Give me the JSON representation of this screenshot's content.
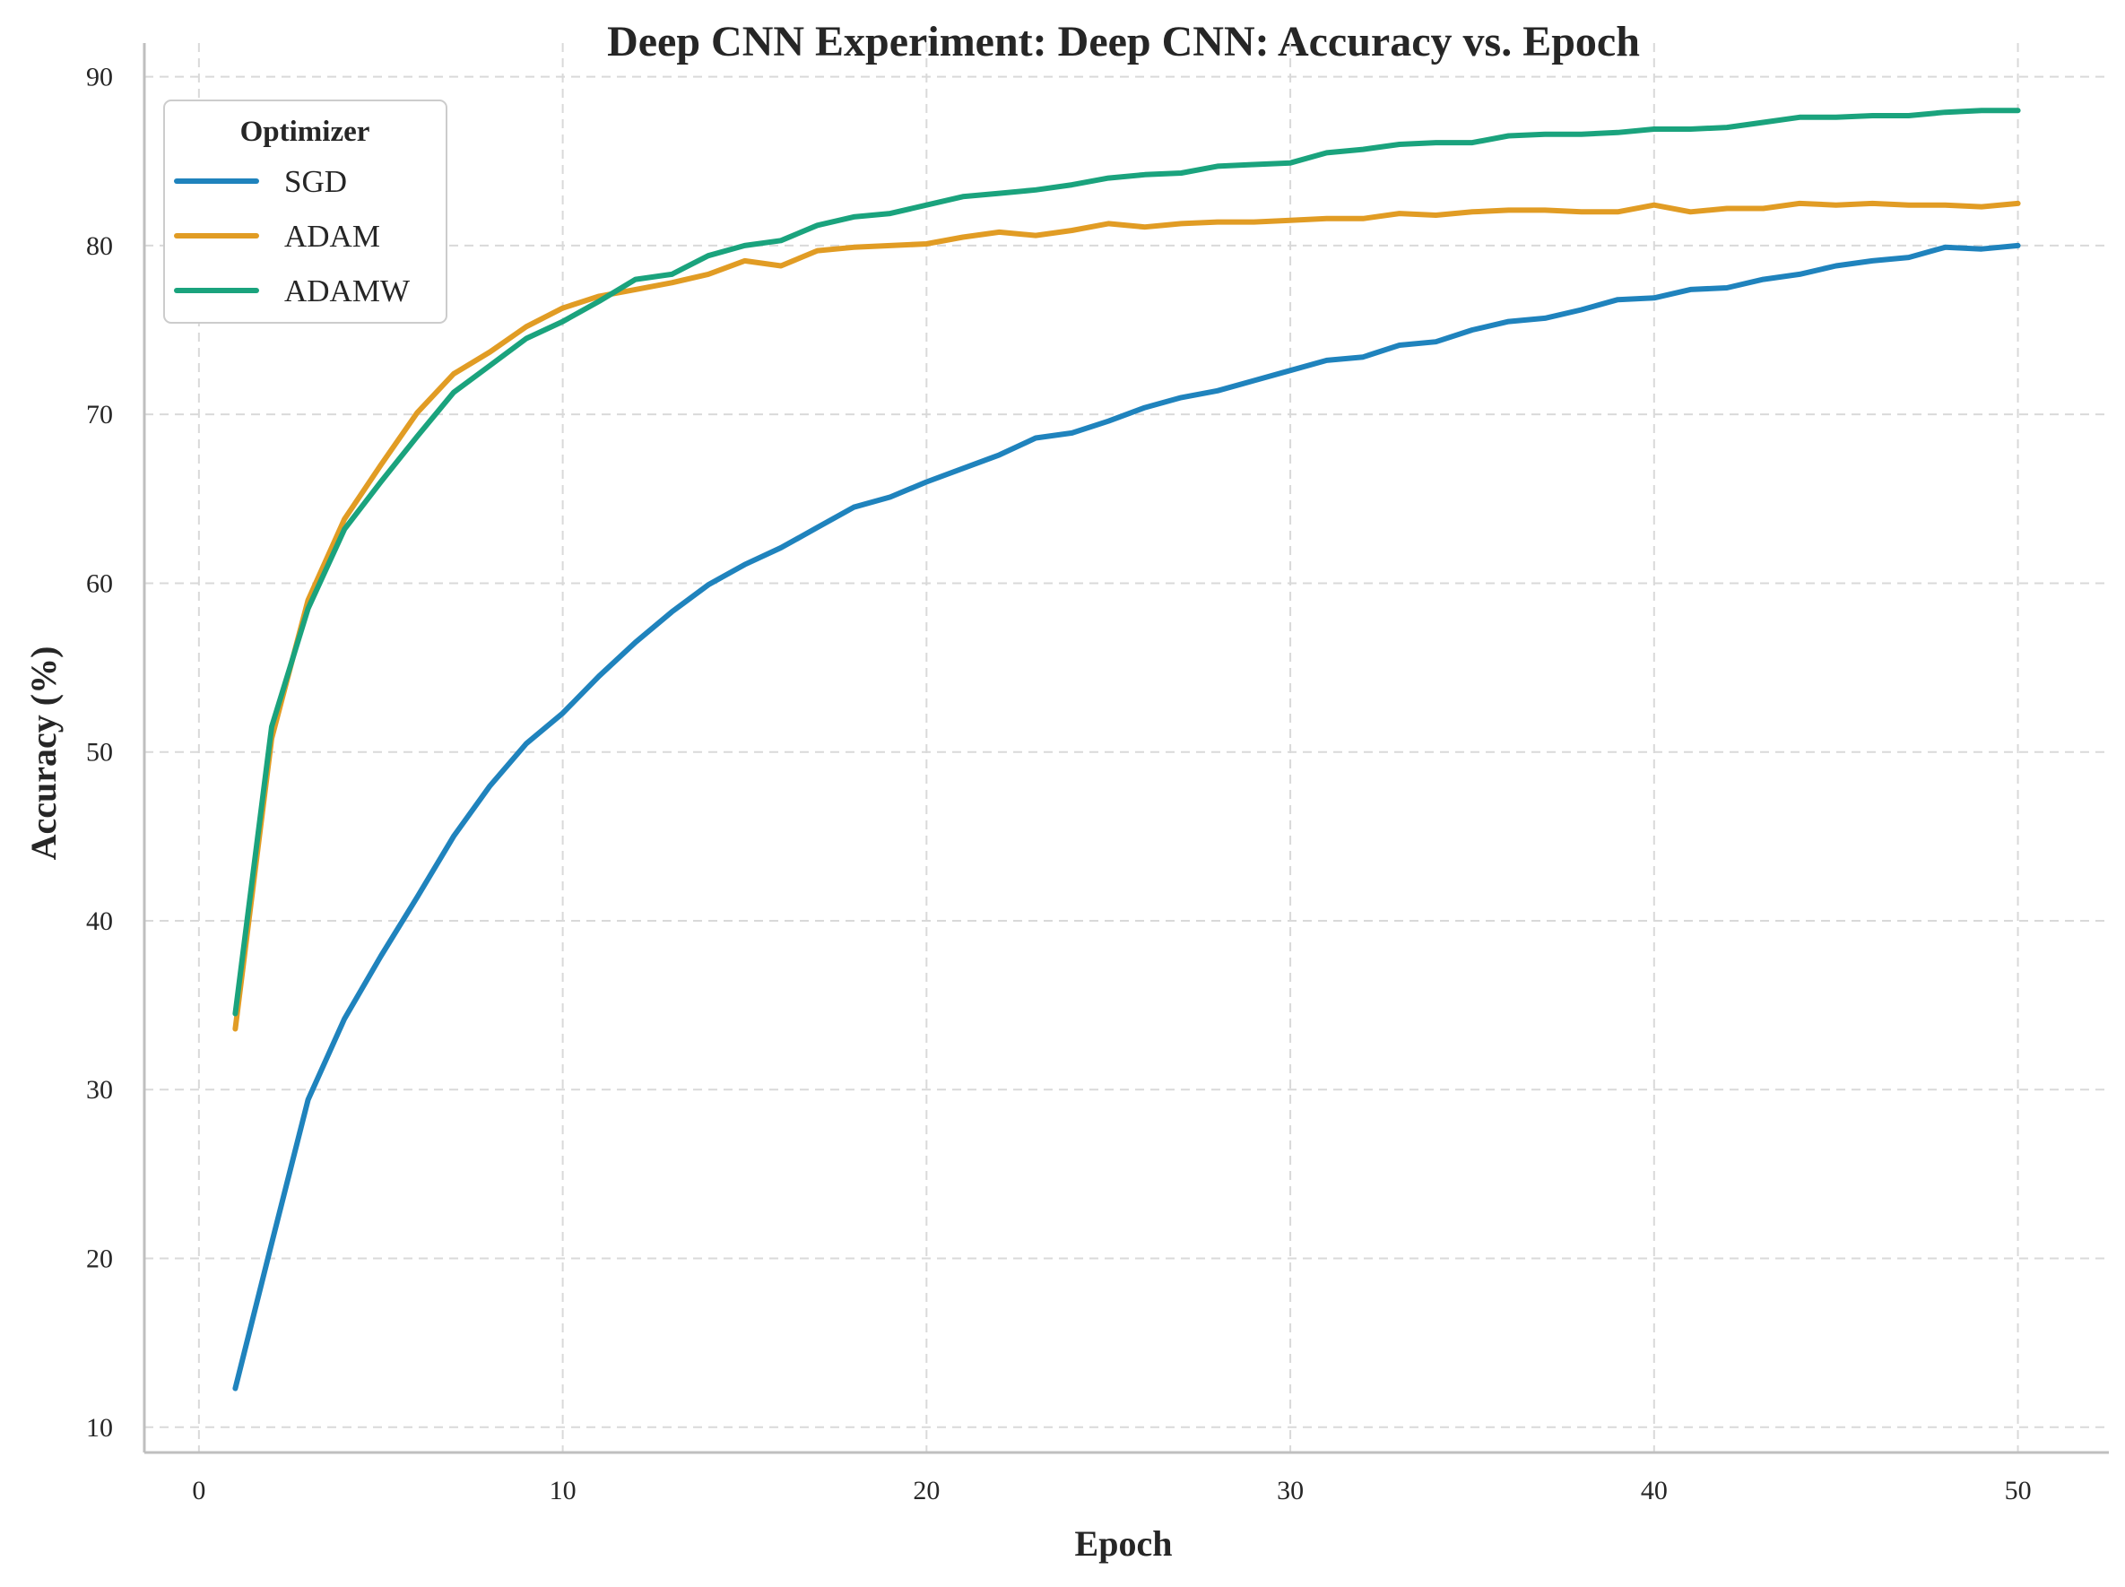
{
  "chart_data": {
    "type": "line",
    "title": "Deep CNN Experiment: Deep CNN: Accuracy vs. Epoch",
    "xlabel": "Epoch",
    "ylabel": "Accuracy (%)",
    "xlim": [
      -1.5,
      52.5
    ],
    "ylim": [
      8.5,
      92
    ],
    "xticks": [
      0,
      10,
      20,
      30,
      40,
      50
    ],
    "yticks": [
      10,
      20,
      30,
      40,
      50,
      60,
      70,
      80,
      90
    ],
    "grid": true,
    "legend": {
      "title": "Optimizer",
      "placement": "top-left"
    },
    "x": [
      1,
      2,
      3,
      4,
      5,
      6,
      7,
      8,
      9,
      10,
      11,
      12,
      13,
      14,
      15,
      16,
      17,
      18,
      19,
      20,
      21,
      22,
      23,
      24,
      25,
      26,
      27,
      28,
      29,
      30,
      31,
      32,
      33,
      34,
      35,
      36,
      37,
      38,
      39,
      40,
      41,
      42,
      43,
      44,
      45,
      46,
      47,
      48,
      49,
      50
    ],
    "series": [
      {
        "name": "SGD",
        "color": "#1f83bd",
        "values": [
          12.3,
          20.9,
          29.4,
          34.2,
          37.9,
          41.4,
          45.0,
          48.0,
          50.5,
          52.3,
          54.5,
          56.5,
          58.3,
          59.9,
          61.1,
          62.1,
          63.3,
          64.5,
          65.1,
          66.0,
          66.8,
          67.6,
          68.6,
          68.9,
          69.6,
          70.4,
          71.0,
          71.4,
          72.0,
          72.6,
          73.2,
          73.4,
          74.1,
          74.3,
          75.0,
          75.5,
          75.7,
          76.2,
          76.8,
          76.9,
          77.4,
          77.5,
          78.0,
          78.3,
          78.8,
          79.1,
          79.3,
          79.9,
          79.8,
          80.0
        ]
      },
      {
        "name": "ADAM",
        "color": "#e19c24",
        "values": [
          33.6,
          50.8,
          59.0,
          63.8,
          67.0,
          70.1,
          72.4,
          73.7,
          75.2,
          76.3,
          77.0,
          77.4,
          77.8,
          78.3,
          79.1,
          78.8,
          79.7,
          79.9,
          80.0,
          80.1,
          80.5,
          80.8,
          80.6,
          80.9,
          81.3,
          81.1,
          81.3,
          81.4,
          81.4,
          81.5,
          81.6,
          81.6,
          81.9,
          81.8,
          82.0,
          82.1,
          82.1,
          82.0,
          82.0,
          82.4,
          82.0,
          82.2,
          82.2,
          82.5,
          82.4,
          82.5,
          82.4,
          82.4,
          82.3,
          82.5
        ]
      },
      {
        "name": "ADAMW",
        "color": "#1aa37d",
        "values": [
          34.5,
          51.5,
          58.5,
          63.2,
          66.0,
          68.7,
          71.3,
          72.9,
          74.5,
          75.5,
          76.7,
          78.0,
          78.3,
          79.4,
          80.0,
          80.3,
          81.2,
          81.7,
          81.9,
          82.4,
          82.9,
          83.1,
          83.3,
          83.6,
          84.0,
          84.2,
          84.3,
          84.7,
          84.8,
          84.9,
          85.5,
          85.7,
          86.0,
          86.1,
          86.1,
          86.5,
          86.6,
          86.6,
          86.7,
          86.9,
          86.9,
          87.0,
          87.3,
          87.6,
          87.6,
          87.7,
          87.7,
          87.9,
          88.0,
          88.0
        ]
      }
    ]
  }
}
